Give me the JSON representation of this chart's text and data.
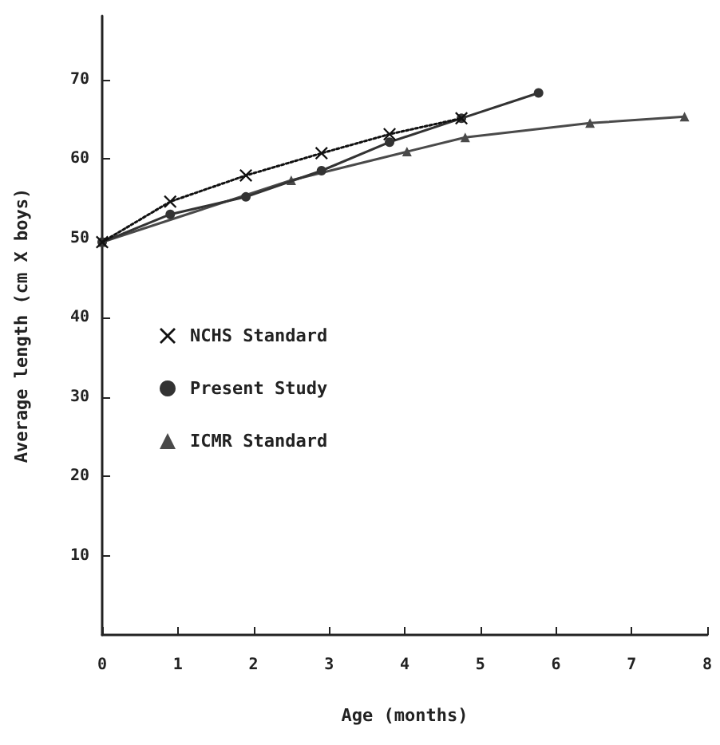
{
  "chart_data": {
    "type": "line",
    "xlabel": "Age (months)",
    "ylabel": "Average length (cm X boys)",
    "xlim": [
      0,
      8
    ],
    "xticks": [
      0,
      1,
      2,
      3,
      4,
      5,
      6,
      7,
      8
    ],
    "ylim": [
      0,
      78
    ],
    "yticks": [
      10,
      20,
      30,
      40,
      50,
      60,
      70
    ],
    "grid": false,
    "legend": "left",
    "line_style": "solid",
    "series": [
      {
        "name": "NCHS Standard",
        "color": "#111111",
        "marker": "cross",
        "line_style": "dotted",
        "x": [
          0,
          0.9,
          1.9,
          2.9,
          3.8,
          4.75
        ],
        "values": [
          49.5,
          54.6,
          57.9,
          60.7,
          63.1,
          65.1
        ]
      },
      {
        "name": "Present Study",
        "color": "#333333",
        "marker": "circle",
        "x": [
          0,
          0.9,
          1.9,
          2.9,
          3.8,
          4.75,
          5.77
        ],
        "values": [
          49.5,
          53,
          55.2,
          58.5,
          62.1,
          65.1,
          68.3
        ]
      },
      {
        "name": "ICMR Standard",
        "color": "#4a4a4a",
        "marker": "triangle",
        "x": [
          0,
          2.5,
          4.03,
          4.8,
          6.45,
          7.7
        ],
        "values": [
          49.5,
          57.3,
          60.9,
          62.7,
          64.5,
          65.3
        ]
      }
    ]
  }
}
